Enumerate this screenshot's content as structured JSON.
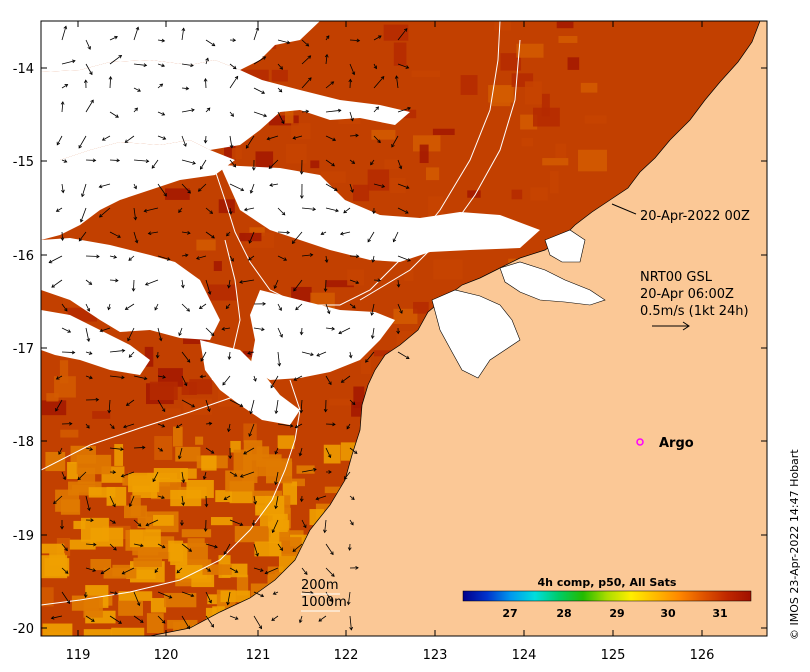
{
  "map": {
    "x_ticks": [
      "119",
      "120",
      "121",
      "122",
      "123",
      "124",
      "125",
      "126"
    ],
    "y_ticks": [
      "-14",
      "-15",
      "-16",
      "-17",
      "-18",
      "-19",
      "-20"
    ],
    "land_color": "#fbc896",
    "sea_colors": [
      "#a31800",
      "#b52a00",
      "#c74400",
      "#d35c00",
      "#e07a00",
      "#f0a000"
    ],
    "contour_color": "#ffffff"
  },
  "annotations": {
    "satellite_time": "20-Apr-2022 00Z",
    "currents_title": "NRT00 GSL",
    "currents_time": "20-Apr 06:00Z",
    "current_scale": "0.5m/s (1kt 24h)",
    "isobath_200": "200m",
    "isobath_1000": "1000m",
    "argo_label": "Argo",
    "argo_color": "#ff00ff"
  },
  "colorbar": {
    "title": "4h comp, p50, All Sats",
    "ticks": [
      "27",
      "28",
      "29",
      "30",
      "31"
    ],
    "colors": [
      "#00008b",
      "#0033cc",
      "#0099ee",
      "#00dddd",
      "#00cc66",
      "#22bb00",
      "#aadd00",
      "#ffee00",
      "#ffbb00",
      "#ff8800",
      "#e05500",
      "#c02800",
      "#a01000"
    ]
  },
  "credit": "© IMOS 23-Apr-2022 14:47 Hobart"
}
